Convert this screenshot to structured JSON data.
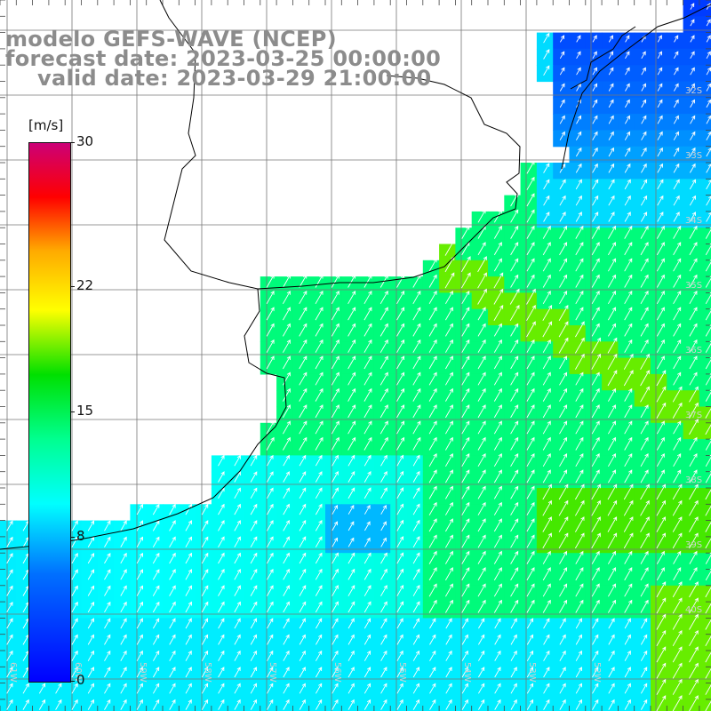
{
  "header": {
    "model_line": "modelo GEFS-WAVE (NCEP)",
    "forecast_line": "forecast date: 2023-03-25 00:00:00",
    "valid_line": "valid date: 2023-03-29 21:00:00"
  },
  "colorbar": {
    "unit": "[m/s]",
    "ticks": [
      {
        "label": "30",
        "value": 30
      },
      {
        "label": "22",
        "value": 22
      },
      {
        "label": "15",
        "value": 15
      },
      {
        "label": "8",
        "value": 8
      },
      {
        "label": "0",
        "value": 0
      }
    ],
    "min": 0,
    "max": 30,
    "colors": [
      "#0000ff",
      "#0070ff",
      "#00ffff",
      "#00ff90",
      "#00e000",
      "#ffff00",
      "#ffaa00",
      "#ff0000",
      "#cc0077"
    ]
  },
  "map": {
    "variable": "wind speed and direction",
    "region": "South Atlantic off Uruguay / Rio de la Plata",
    "lat_labels": [
      "32S",
      "33S",
      "34S",
      "35S",
      "36S",
      "37S",
      "38S",
      "39S",
      "40S"
    ],
    "lon_labels": [
      "61W",
      "60W",
      "59W",
      "58W",
      "57W",
      "56W",
      "55W",
      "54W",
      "53W",
      "52W"
    ],
    "arrow_direction": "northeast",
    "grid_color": "#777777",
    "coastline_color": "#000000",
    "land_color": "#ffffff"
  }
}
